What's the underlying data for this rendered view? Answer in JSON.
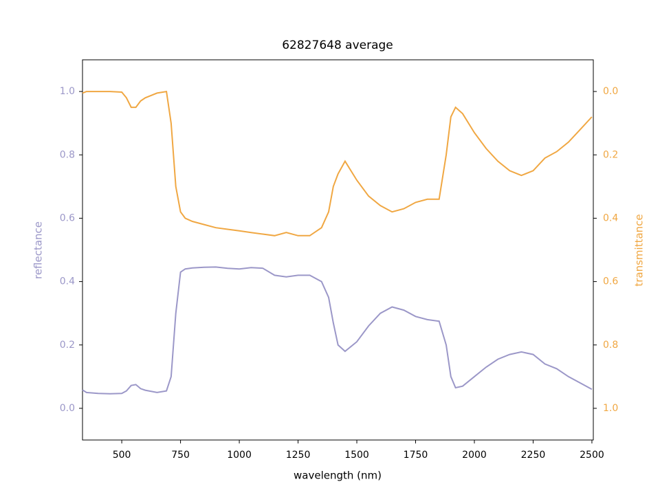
{
  "chart_data": {
    "type": "line",
    "title": "62827648 average",
    "xlabel": "wavelength (nm)",
    "ylabel": "reflectance",
    "y2label": "transmittance",
    "x": [
      333,
      350,
      400,
      450,
      500,
      520,
      540,
      560,
      580,
      600,
      650,
      690,
      710,
      730,
      750,
      770,
      800,
      850,
      900,
      950,
      1000,
      1050,
      1100,
      1150,
      1200,
      1250,
      1300,
      1350,
      1380,
      1400,
      1420,
      1450,
      1500,
      1550,
      1600,
      1650,
      1700,
      1750,
      1800,
      1850,
      1880,
      1900,
      1920,
      1950,
      2000,
      2050,
      2100,
      2150,
      2200,
      2250,
      2300,
      2350,
      2400,
      2450,
      2500
    ],
    "series": [
      {
        "color": "#9b97c8",
        "axis": "y",
        "values": [
          0.058,
          0.05,
          0.047,
          0.046,
          0.047,
          0.055,
          0.072,
          0.075,
          0.062,
          0.057,
          0.05,
          0.055,
          0.1,
          0.3,
          0.43,
          0.44,
          0.443,
          0.445,
          0.446,
          0.442,
          0.44,
          0.444,
          0.442,
          0.42,
          0.415,
          0.42,
          0.42,
          0.4,
          0.35,
          0.27,
          0.2,
          0.18,
          0.21,
          0.26,
          0.3,
          0.32,
          0.31,
          0.29,
          0.28,
          0.275,
          0.2,
          0.1,
          0.065,
          0.07,
          0.1,
          0.13,
          0.155,
          0.17,
          0.178,
          0.17,
          0.14,
          0.125,
          0.1,
          0.08,
          0.06
        ]
      },
      {
        "color": "#f0a742",
        "axis": "y2",
        "values": [
          0.005,
          0.0,
          0.0,
          0.0,
          0.002,
          0.02,
          0.05,
          0.05,
          0.03,
          0.02,
          0.005,
          0.0,
          0.1,
          0.3,
          0.38,
          0.4,
          0.41,
          0.42,
          0.43,
          0.435,
          0.44,
          0.445,
          0.45,
          0.455,
          0.445,
          0.455,
          0.455,
          0.43,
          0.38,
          0.3,
          0.26,
          0.22,
          0.28,
          0.33,
          0.36,
          0.38,
          0.37,
          0.35,
          0.34,
          0.34,
          0.2,
          0.08,
          0.05,
          0.07,
          0.13,
          0.18,
          0.22,
          0.25,
          0.265,
          0.25,
          0.21,
          0.19,
          0.16,
          0.12,
          0.08
        ]
      }
    ],
    "xlim": [
      333,
      2506
    ],
    "xticks": [
      500,
      750,
      1000,
      1250,
      1500,
      1750,
      2000,
      2250,
      2500
    ],
    "ylim": [
      -0.1,
      1.1
    ],
    "yticks": [
      {
        "value": 0,
        "label": "0.0"
      },
      0.2,
      0.4,
      0.6,
      0.8,
      {
        "value": 1,
        "label": "1.0"
      }
    ],
    "y2lim": [
      1.1,
      -0.1
    ],
    "y2ticks": [
      {
        "value": 0,
        "label": "0.0"
      },
      0.2,
      0.4,
      0.6,
      0.8,
      {
        "value": 1,
        "label": "1.0"
      }
    ]
  }
}
